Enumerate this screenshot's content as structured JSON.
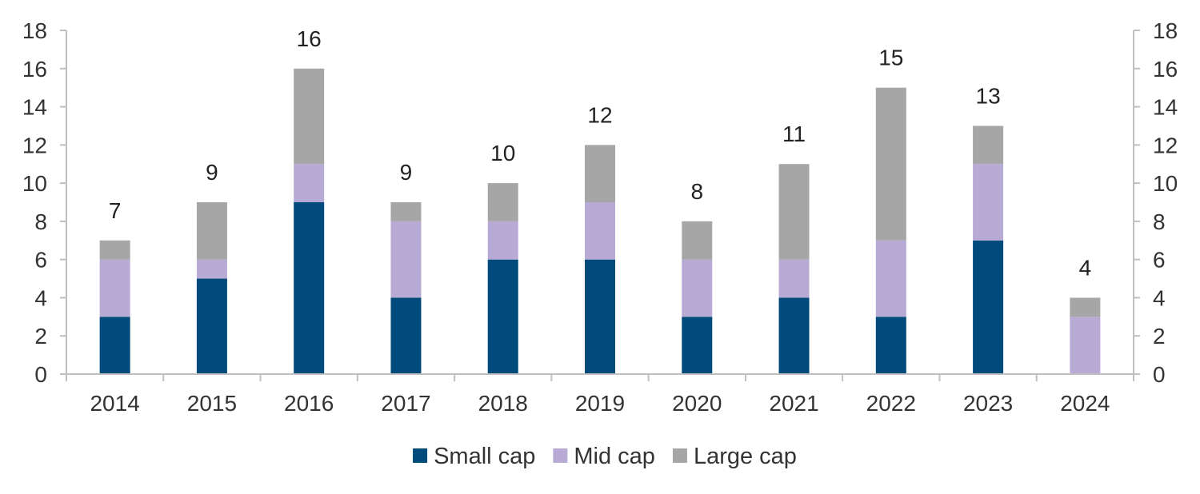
{
  "chart_data": {
    "type": "bar",
    "stacked": true,
    "categories": [
      "2014",
      "2015",
      "2016",
      "2017",
      "2018",
      "2019",
      "2020",
      "2021",
      "2022",
      "2023",
      "2024"
    ],
    "series": [
      {
        "name": "Small cap",
        "color": "#004b7c",
        "values": [
          3,
          5,
          9,
          4,
          6,
          6,
          3,
          4,
          3,
          7,
          0
        ]
      },
      {
        "name": "Mid cap",
        "color": "#b7aad4",
        "values": [
          3,
          1,
          2,
          4,
          2,
          3,
          3,
          2,
          4,
          4,
          3
        ]
      },
      {
        "name": "Large cap",
        "color": "#a6a6a6",
        "values": [
          1,
          3,
          5,
          1,
          2,
          3,
          2,
          5,
          8,
          2,
          1
        ]
      }
    ],
    "totals": [
      "7",
      "9",
      "16",
      "9",
      "10",
      "12",
      "8",
      "11",
      "15",
      "13",
      "4"
    ],
    "ylim": [
      0,
      18
    ],
    "yticks": [
      "0",
      "2",
      "4",
      "6",
      "8",
      "10",
      "12",
      "14",
      "16",
      "18"
    ],
    "secondary_ylim": [
      0,
      18
    ],
    "secondary_yticks": [
      "0",
      "2",
      "4",
      "6",
      "8",
      "10",
      "12",
      "14",
      "16",
      "18"
    ],
    "grid": false,
    "legend_position": "bottom"
  }
}
